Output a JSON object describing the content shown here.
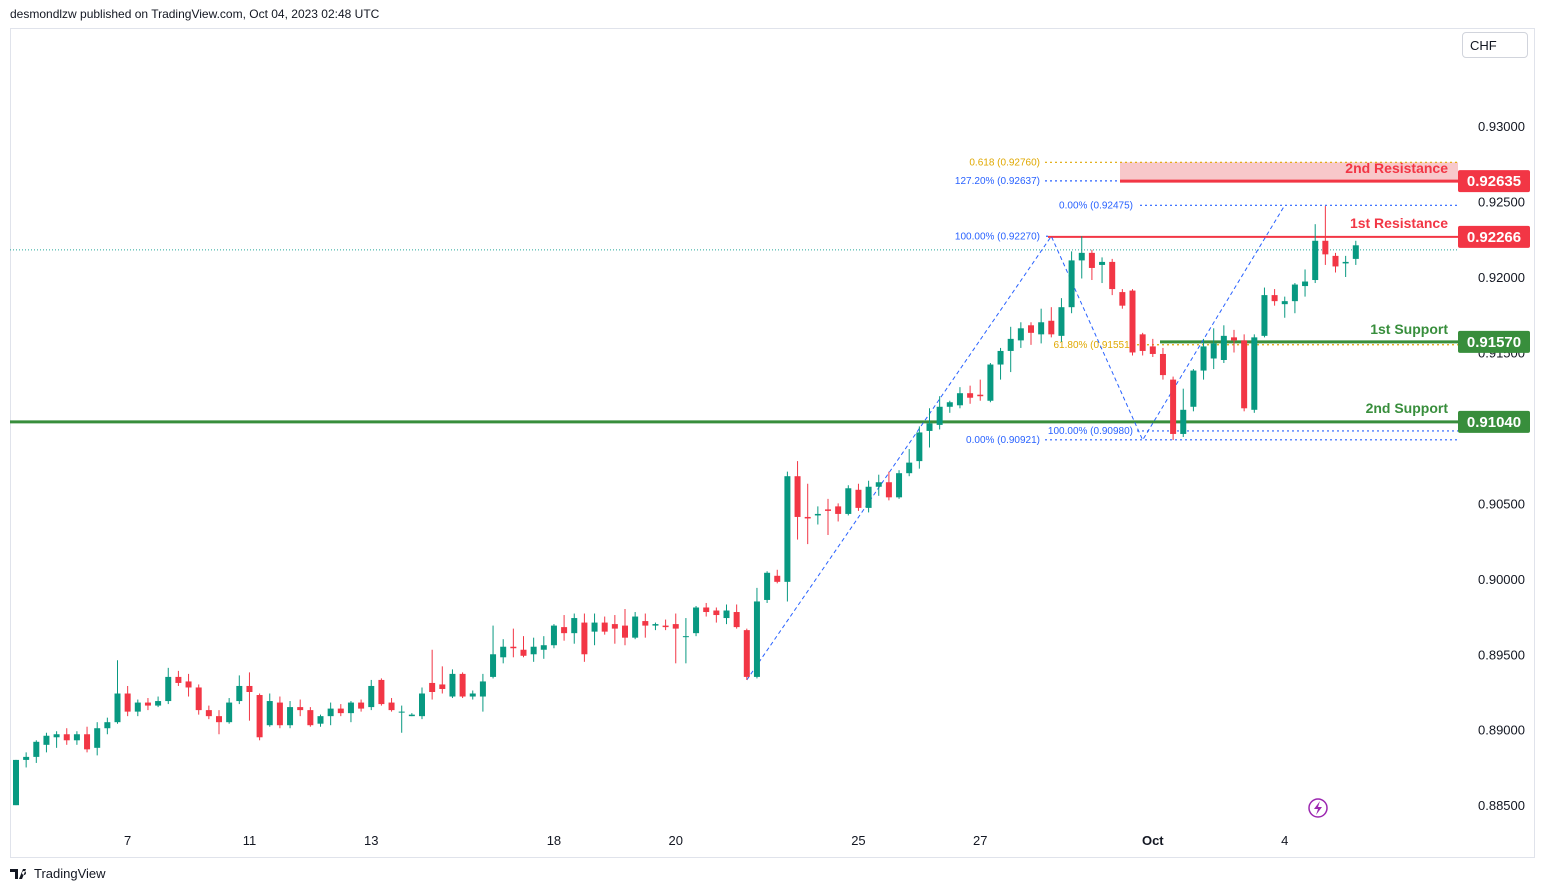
{
  "header": {
    "attribution": "desmondlzw published on TradingView.com, Oct 04, 2023 02:48 UTC"
  },
  "currency_button": "CHF",
  "footer": {
    "brand": "TradingView",
    "icon": "tradingview-logo-icon"
  },
  "colors": {
    "bull": "#26a69a",
    "bull_body": "#089981",
    "bear": "#f23645",
    "support": "#388e3c",
    "resistance": "#f23645",
    "fib_blue": "#2962ff",
    "fib_orange": "#e0a800",
    "resistance_zone": "#f8c8ca"
  },
  "chart_data": {
    "type": "candlestick",
    "symbol_currency": "CHF",
    "ylim": [
      0.8815,
      0.9365
    ],
    "y_ticks": [
      {
        "value": 0.93,
        "label": "0.93000"
      },
      {
        "value": 0.925,
        "label": "0.92500"
      },
      {
        "value": 0.92,
        "label": "0.92000"
      },
      {
        "value": 0.915,
        "label": "0.91500"
      },
      {
        "value": 0.905,
        "label": "0.90500"
      },
      {
        "value": 0.9,
        "label": "0.90000"
      },
      {
        "value": 0.895,
        "label": "0.89500"
      },
      {
        "value": 0.89,
        "label": "0.89000"
      },
      {
        "value": 0.885,
        "label": "0.88500"
      }
    ],
    "x_ticks": [
      {
        "index": 11,
        "label": "7"
      },
      {
        "index": 23,
        "label": "11"
      },
      {
        "index": 35,
        "label": "13"
      },
      {
        "index": 53,
        "label": "18"
      },
      {
        "index": 65,
        "label": "20"
      },
      {
        "index": 83,
        "label": "25"
      },
      {
        "index": 95,
        "label": "27"
      },
      {
        "index": 112,
        "label": "Oct"
      },
      {
        "index": 125,
        "label": "4"
      }
    ],
    "levels": [
      {
        "name": "2nd Resistance",
        "value": 0.92635,
        "label": "0.92635",
        "kind": "resistance"
      },
      {
        "name": "1st Resistance",
        "value": 0.92266,
        "label": "0.92266",
        "kind": "resistance"
      },
      {
        "name": "1st Support",
        "value": 0.9157,
        "label": "0.91570",
        "kind": "support"
      },
      {
        "name": "2nd Support",
        "value": 0.9104,
        "label": "0.91040",
        "kind": "support"
      }
    ],
    "fib_labels": [
      {
        "text": "0.618 (0.92760)",
        "value": 0.9276,
        "color": "orange"
      },
      {
        "text": "127.20% (0.92637)",
        "value": 0.92637,
        "color": "blue"
      },
      {
        "text": "0.00% (0.92475)",
        "value": 0.92475,
        "color": "blue"
      },
      {
        "text": "100.00% (0.92270)",
        "value": 0.9227,
        "color": "blue"
      },
      {
        "text": "61.80% (0.91551)",
        "value": 0.91551,
        "color": "orange"
      },
      {
        "text": "100.00% (0.90980)",
        "value": 0.9098,
        "color": "blue"
      },
      {
        "text": "0.00% (0.90921)",
        "value": 0.90921,
        "color": "blue"
      }
    ],
    "current_price": 0.9218,
    "candles": [
      {
        "o": 0.885,
        "h": 0.888,
        "l": 0.885,
        "c": 0.888
      },
      {
        "o": 0.888,
        "h": 0.8885,
        "l": 0.8875,
        "c": 0.8882
      },
      {
        "o": 0.8882,
        "h": 0.8893,
        "l": 0.8878,
        "c": 0.8892
      },
      {
        "o": 0.889,
        "h": 0.8898,
        "l": 0.8885,
        "c": 0.8896
      },
      {
        "o": 0.8895,
        "h": 0.8899,
        "l": 0.8888,
        "c": 0.8897
      },
      {
        "o": 0.8897,
        "h": 0.8901,
        "l": 0.889,
        "c": 0.8893
      },
      {
        "o": 0.8893,
        "h": 0.8899,
        "l": 0.889,
        "c": 0.8897
      },
      {
        "o": 0.8897,
        "h": 0.8902,
        "l": 0.8885,
        "c": 0.8887
      },
      {
        "o": 0.8888,
        "h": 0.8905,
        "l": 0.8883,
        "c": 0.8901
      },
      {
        "o": 0.8901,
        "h": 0.8908,
        "l": 0.8897,
        "c": 0.8905
      },
      {
        "o": 0.8905,
        "h": 0.8946,
        "l": 0.8904,
        "c": 0.8924
      },
      {
        "o": 0.8924,
        "h": 0.8929,
        "l": 0.8909,
        "c": 0.8912
      },
      {
        "o": 0.8912,
        "h": 0.892,
        "l": 0.8909,
        "c": 0.8918
      },
      {
        "o": 0.8918,
        "h": 0.8921,
        "l": 0.8913,
        "c": 0.8916
      },
      {
        "o": 0.8916,
        "h": 0.8922,
        "l": 0.8915,
        "c": 0.8919
      },
      {
        "o": 0.8919,
        "h": 0.8941,
        "l": 0.8917,
        "c": 0.8935
      },
      {
        "o": 0.8935,
        "h": 0.8939,
        "l": 0.8929,
        "c": 0.8931
      },
      {
        "o": 0.8932,
        "h": 0.8937,
        "l": 0.8922,
        "c": 0.8928
      },
      {
        "o": 0.8928,
        "h": 0.893,
        "l": 0.891,
        "c": 0.8913
      },
      {
        "o": 0.8913,
        "h": 0.8916,
        "l": 0.8907,
        "c": 0.8909
      },
      {
        "o": 0.8909,
        "h": 0.8913,
        "l": 0.8897,
        "c": 0.8905
      },
      {
        "o": 0.8905,
        "h": 0.8921,
        "l": 0.8904,
        "c": 0.8918
      },
      {
        "o": 0.8919,
        "h": 0.8936,
        "l": 0.8917,
        "c": 0.8929
      },
      {
        "o": 0.8929,
        "h": 0.8938,
        "l": 0.8906,
        "c": 0.8925
      },
      {
        "o": 0.8923,
        "h": 0.8924,
        "l": 0.8893,
        "c": 0.8895
      },
      {
        "o": 0.8903,
        "h": 0.8924,
        "l": 0.8902,
        "c": 0.8919
      },
      {
        "o": 0.8918,
        "h": 0.8922,
        "l": 0.8901,
        "c": 0.8903
      },
      {
        "o": 0.8903,
        "h": 0.8919,
        "l": 0.8901,
        "c": 0.8915
      },
      {
        "o": 0.8915,
        "h": 0.892,
        "l": 0.8909,
        "c": 0.8913
      },
      {
        "o": 0.8913,
        "h": 0.8915,
        "l": 0.8902,
        "c": 0.8903
      },
      {
        "o": 0.8904,
        "h": 0.891,
        "l": 0.8902,
        "c": 0.8909
      },
      {
        "o": 0.8909,
        "h": 0.8918,
        "l": 0.8903,
        "c": 0.8914
      },
      {
        "o": 0.8914,
        "h": 0.8917,
        "l": 0.8909,
        "c": 0.8911
      },
      {
        "o": 0.8911,
        "h": 0.8919,
        "l": 0.8905,
        "c": 0.8918
      },
      {
        "o": 0.8918,
        "h": 0.892,
        "l": 0.8912,
        "c": 0.8914
      },
      {
        "o": 0.8915,
        "h": 0.8933,
        "l": 0.8913,
        "c": 0.8929
      },
      {
        "o": 0.8933,
        "h": 0.8934,
        "l": 0.8916,
        "c": 0.8917
      },
      {
        "o": 0.8918,
        "h": 0.8921,
        "l": 0.8912,
        "c": 0.8913
      },
      {
        "o": 0.8912,
        "h": 0.8916,
        "l": 0.8898,
        "c": 0.8912
      },
      {
        "o": 0.8909,
        "h": 0.8911,
        "l": 0.8909,
        "c": 0.891
      },
      {
        "o": 0.8909,
        "h": 0.8928,
        "l": 0.8907,
        "c": 0.8924
      },
      {
        "o": 0.8931,
        "h": 0.8953,
        "l": 0.892,
        "c": 0.8925
      },
      {
        "o": 0.893,
        "h": 0.8942,
        "l": 0.8924,
        "c": 0.8927
      },
      {
        "o": 0.8922,
        "h": 0.894,
        "l": 0.8921,
        "c": 0.8937
      },
      {
        "o": 0.8937,
        "h": 0.8938,
        "l": 0.8921,
        "c": 0.8922
      },
      {
        "o": 0.8922,
        "h": 0.8926,
        "l": 0.892,
        "c": 0.8924
      },
      {
        "o": 0.8922,
        "h": 0.8937,
        "l": 0.8912,
        "c": 0.8932
      },
      {
        "o": 0.8935,
        "h": 0.8969,
        "l": 0.8934,
        "c": 0.895
      },
      {
        "o": 0.8948,
        "h": 0.896,
        "l": 0.8944,
        "c": 0.8955
      },
      {
        "o": 0.8955,
        "h": 0.8967,
        "l": 0.8948,
        "c": 0.8954
      },
      {
        "o": 0.8953,
        "h": 0.8962,
        "l": 0.8948,
        "c": 0.8949
      },
      {
        "o": 0.895,
        "h": 0.8961,
        "l": 0.8945,
        "c": 0.8955
      },
      {
        "o": 0.8953,
        "h": 0.8962,
        "l": 0.8947,
        "c": 0.8956
      },
      {
        "o": 0.8956,
        "h": 0.897,
        "l": 0.8954,
        "c": 0.8969
      },
      {
        "o": 0.8968,
        "h": 0.8976,
        "l": 0.8959,
        "c": 0.8964
      },
      {
        "o": 0.8964,
        "h": 0.8977,
        "l": 0.8957,
        "c": 0.8974
      },
      {
        "o": 0.8971,
        "h": 0.8977,
        "l": 0.8945,
        "c": 0.895
      },
      {
        "o": 0.8965,
        "h": 0.8977,
        "l": 0.8956,
        "c": 0.8971
      },
      {
        "o": 0.8971,
        "h": 0.8975,
        "l": 0.8963,
        "c": 0.8965
      },
      {
        "o": 0.897,
        "h": 0.8976,
        "l": 0.8957,
        "c": 0.8967
      },
      {
        "o": 0.8969,
        "h": 0.898,
        "l": 0.8956,
        "c": 0.8961
      },
      {
        "o": 0.8961,
        "h": 0.8978,
        "l": 0.896,
        "c": 0.8975
      },
      {
        "o": 0.8972,
        "h": 0.8977,
        "l": 0.8961,
        "c": 0.8969
      },
      {
        "o": 0.8969,
        "h": 0.8971,
        "l": 0.8966,
        "c": 0.897
      },
      {
        "o": 0.8969,
        "h": 0.8973,
        "l": 0.8966,
        "c": 0.8968
      },
      {
        "o": 0.897,
        "h": 0.8977,
        "l": 0.8944,
        "c": 0.8967
      },
      {
        "o": 0.8962,
        "h": 0.8974,
        "l": 0.8944,
        "c": 0.8962
      },
      {
        "o": 0.8964,
        "h": 0.8982,
        "l": 0.8962,
        "c": 0.8981
      },
      {
        "o": 0.8981,
        "h": 0.8984,
        "l": 0.8975,
        "c": 0.8978
      },
      {
        "o": 0.8979,
        "h": 0.8981,
        "l": 0.8971,
        "c": 0.8976
      },
      {
        "o": 0.8974,
        "h": 0.8983,
        "l": 0.897,
        "c": 0.8979
      },
      {
        "o": 0.8978,
        "h": 0.8983,
        "l": 0.8967,
        "c": 0.8968
      },
      {
        "o": 0.8966,
        "h": 0.8967,
        "l": 0.8933,
        "c": 0.8935
      },
      {
        "o": 0.8935,
        "h": 0.8994,
        "l": 0.8934,
        "c": 0.8985
      },
      {
        "o": 0.8986,
        "h": 0.9005,
        "l": 0.8984,
        "c": 0.9004
      },
      {
        "o": 0.9002,
        "h": 0.9006,
        "l": 0.8997,
        "c": 0.8998
      },
      {
        "o": 0.8998,
        "h": 0.9071,
        "l": 0.8985,
        "c": 0.9068
      },
      {
        "o": 0.9068,
        "h": 0.9078,
        "l": 0.9026,
        "c": 0.9041
      },
      {
        "o": 0.9041,
        "h": 0.9063,
        "l": 0.9023,
        "c": 0.904
      },
      {
        "o": 0.9042,
        "h": 0.9048,
        "l": 0.9036,
        "c": 0.9043
      },
      {
        "o": 0.9046,
        "h": 0.9053,
        "l": 0.9029,
        "c": 0.9045
      },
      {
        "o": 0.9048,
        "h": 0.905,
        "l": 0.9038,
        "c": 0.9043
      },
      {
        "o": 0.9043,
        "h": 0.9062,
        "l": 0.9042,
        "c": 0.906
      },
      {
        "o": 0.9059,
        "h": 0.9063,
        "l": 0.9045,
        "c": 0.9047
      },
      {
        "o": 0.9047,
        "h": 0.9065,
        "l": 0.9044,
        "c": 0.9061
      },
      {
        "o": 0.9061,
        "h": 0.9069,
        "l": 0.9055,
        "c": 0.9064
      },
      {
        "o": 0.9064,
        "h": 0.9071,
        "l": 0.9052,
        "c": 0.9054
      },
      {
        "o": 0.9054,
        "h": 0.9072,
        "l": 0.9053,
        "c": 0.907
      },
      {
        "o": 0.907,
        "h": 0.9086,
        "l": 0.9068,
        "c": 0.9077
      },
      {
        "o": 0.9078,
        "h": 0.9101,
        "l": 0.9073,
        "c": 0.9097
      },
      {
        "o": 0.9098,
        "h": 0.9113,
        "l": 0.9087,
        "c": 0.9103
      },
      {
        "o": 0.9102,
        "h": 0.9121,
        "l": 0.9099,
        "c": 0.9114
      },
      {
        "o": 0.9114,
        "h": 0.9118,
        "l": 0.911,
        "c": 0.9117
      },
      {
        "o": 0.9115,
        "h": 0.9127,
        "l": 0.9113,
        "c": 0.9123
      },
      {
        "o": 0.9123,
        "h": 0.9128,
        "l": 0.9116,
        "c": 0.912
      },
      {
        "o": 0.9122,
        "h": 0.9132,
        "l": 0.9118,
        "c": 0.9121
      },
      {
        "o": 0.9118,
        "h": 0.9143,
        "l": 0.9117,
        "c": 0.9142
      },
      {
        "o": 0.9142,
        "h": 0.9153,
        "l": 0.9132,
        "c": 0.9151
      },
      {
        "o": 0.9151,
        "h": 0.9167,
        "l": 0.9137,
        "c": 0.9159
      },
      {
        "o": 0.9158,
        "h": 0.917,
        "l": 0.9153,
        "c": 0.9166
      },
      {
        "o": 0.9168,
        "h": 0.917,
        "l": 0.9155,
        "c": 0.9163
      },
      {
        "o": 0.9162,
        "h": 0.9179,
        "l": 0.9156,
        "c": 0.917
      },
      {
        "o": 0.9171,
        "h": 0.918,
        "l": 0.916,
        "c": 0.9162
      },
      {
        "o": 0.9161,
        "h": 0.9186,
        "l": 0.9157,
        "c": 0.918
      },
      {
        "o": 0.918,
        "h": 0.9217,
        "l": 0.9176,
        "c": 0.9211
      },
      {
        "o": 0.9211,
        "h": 0.9227,
        "l": 0.9199,
        "c": 0.9216
      },
      {
        "o": 0.9216,
        "h": 0.9218,
        "l": 0.9198,
        "c": 0.9206
      },
      {
        "o": 0.9208,
        "h": 0.9213,
        "l": 0.9196,
        "c": 0.921
      },
      {
        "o": 0.921,
        "h": 0.9212,
        "l": 0.9188,
        "c": 0.9192
      },
      {
        "o": 0.919,
        "h": 0.9192,
        "l": 0.9179,
        "c": 0.9181
      },
      {
        "o": 0.9191,
        "h": 0.9192,
        "l": 0.9148,
        "c": 0.915
      },
      {
        "o": 0.9162,
        "h": 0.9163,
        "l": 0.9148,
        "c": 0.9151
      },
      {
        "o": 0.9154,
        "h": 0.9159,
        "l": 0.9147,
        "c": 0.9149
      },
      {
        "o": 0.9149,
        "h": 0.9153,
        "l": 0.9132,
        "c": 0.9135
      },
      {
        "o": 0.9132,
        "h": 0.9134,
        "l": 0.9092,
        "c": 0.9096
      },
      {
        "o": 0.9096,
        "h": 0.9126,
        "l": 0.9094,
        "c": 0.9112
      },
      {
        "o": 0.9114,
        "h": 0.9139,
        "l": 0.9111,
        "c": 0.9138
      },
      {
        "o": 0.9138,
        "h": 0.9159,
        "l": 0.9132,
        "c": 0.9154
      },
      {
        "o": 0.9146,
        "h": 0.9166,
        "l": 0.9139,
        "c": 0.9156
      },
      {
        "o": 0.9145,
        "h": 0.9168,
        "l": 0.9143,
        "c": 0.9161
      },
      {
        "o": 0.916,
        "h": 0.9165,
        "l": 0.915,
        "c": 0.9158
      },
      {
        "o": 0.9158,
        "h": 0.9162,
        "l": 0.9111,
        "c": 0.9113
      },
      {
        "o": 0.9112,
        "h": 0.9162,
        "l": 0.911,
        "c": 0.916
      },
      {
        "o": 0.9161,
        "h": 0.9193,
        "l": 0.916,
        "c": 0.9188
      },
      {
        "o": 0.9188,
        "h": 0.9192,
        "l": 0.9181,
        "c": 0.9184
      },
      {
        "o": 0.9182,
        "h": 0.9187,
        "l": 0.9173,
        "c": 0.9184
      },
      {
        "o": 0.9184,
        "h": 0.9196,
        "l": 0.9176,
        "c": 0.9195
      },
      {
        "o": 0.9194,
        "h": 0.9205,
        "l": 0.9187,
        "c": 0.9197
      },
      {
        "o": 0.9198,
        "h": 0.9235,
        "l": 0.9196,
        "c": 0.9224
      },
      {
        "o": 0.9224,
        "h": 0.9247,
        "l": 0.9208,
        "c": 0.9215
      },
      {
        "o": 0.9214,
        "h": 0.9216,
        "l": 0.9203,
        "c": 0.9207
      },
      {
        "o": 0.9209,
        "h": 0.9214,
        "l": 0.92,
        "c": 0.921
      },
      {
        "o": 0.9212,
        "h": 0.9224,
        "l": 0.9208,
        "c": 0.9221
      }
    ]
  }
}
